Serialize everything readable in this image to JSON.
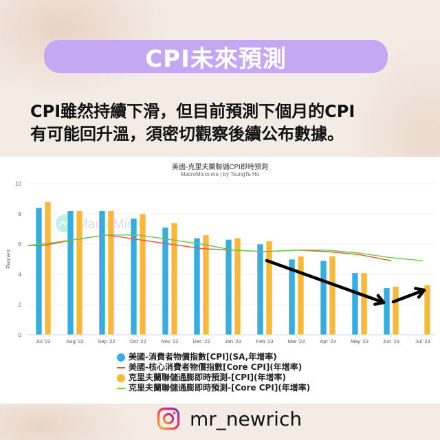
{
  "header": {
    "title": "CPI未來預測",
    "subtitle_line1": "CPI雖然持續下滑，但目前預測下個月的CPI",
    "subtitle_line2": "有可能回升溫，須密切觀察後續公布數據。"
  },
  "chart": {
    "title": "美國-克里夫蘭聯儲CPI即時預測",
    "source": "MacroMicro.me | by TsungTa Ho",
    "watermark": "MacroMicro",
    "ylabel": "Percent"
  },
  "legend": [
    {
      "label": "美國-消費者物價指數[CPI](SA,年增率)",
      "marker": "dot",
      "color": "#3aacdb"
    },
    {
      "label": "美國-核心消費者物價指數[Core CPI](年增率)",
      "marker": "line",
      "color": "#e8553e"
    },
    {
      "label": "克里夫蘭聯儲通膨即時預測-[CPI](年增率)",
      "marker": "dot",
      "color": "#f5b942"
    },
    {
      "label": "克里夫蘭聯儲通膨即時預測-[Core CPI](年增率)",
      "marker": "line",
      "color": "#6cc644"
    }
  ],
  "footer": {
    "icon": "instagram-icon",
    "handle": "mr_newrich"
  },
  "colors": {
    "cpi": "#3aacdb",
    "core_cpi": "#e8553e",
    "nowcast_cpi": "#f5b942",
    "nowcast_core": "#6cc644",
    "pill": "#c4a8f2",
    "arrow": "#000000"
  },
  "chart_data": {
    "type": "bar",
    "title": "美國-克里夫蘭聯儲CPI即時預測",
    "subtitle": "MacroMicro.me | by TsungTa Ho",
    "xlabel": "",
    "ylabel": "Percent",
    "ylim": [
      0,
      10
    ],
    "yticks": [
      0,
      2,
      4,
      6,
      8,
      10
    ],
    "grid": true,
    "legend_position": "bottom",
    "categories": [
      "Jul '22",
      "Aug '22",
      "Sep '22",
      "Oct '22",
      "Nov '22",
      "Dec '22",
      "Jan '23",
      "Feb '23",
      "Mar '23",
      "Apr '23",
      "May '23",
      "Jun '23",
      "Jul '23"
    ],
    "series": [
      {
        "name": "美國-消費者物價指數[CPI](SA,年增率)",
        "type": "bar",
        "color": "#3aacdb",
        "values": [
          8.4,
          8.2,
          8.2,
          7.7,
          7.1,
          6.4,
          6.3,
          6.0,
          5.0,
          4.9,
          4.1,
          3.1,
          null
        ]
      },
      {
        "name": "美國-核心消費者物價指數[Core CPI](年增率)",
        "type": "line",
        "color": "#e8553e",
        "values": [
          5.9,
          6.3,
          6.6,
          6.3,
          6.0,
          5.7,
          5.6,
          5.5,
          5.6,
          5.5,
          5.3,
          4.9,
          null
        ]
      },
      {
        "name": "克里夫蘭聯儲通膨即時預測-[CPI](年增率)",
        "type": "bar",
        "color": "#f5b942",
        "values": [
          8.8,
          8.2,
          8.2,
          8.0,
          7.4,
          6.6,
          6.4,
          6.2,
          5.2,
          5.2,
          4.1,
          3.2,
          3.3
        ]
      },
      {
        "name": "克里夫蘭聯儲通膨即時預測-[Core CPI](年增率)",
        "type": "line",
        "color": "#6cc644",
        "values": [
          6.0,
          6.3,
          6.6,
          6.6,
          6.3,
          6.0,
          5.6,
          5.5,
          5.6,
          5.6,
          5.4,
          5.1,
          4.9
        ]
      }
    ],
    "annotations": [
      {
        "type": "arrow",
        "from": "Feb '23",
        "to": "Jun '23",
        "direction": "down"
      },
      {
        "type": "arrow",
        "from": "Jun '23",
        "to": "Jul '23",
        "direction": "up"
      }
    ]
  }
}
